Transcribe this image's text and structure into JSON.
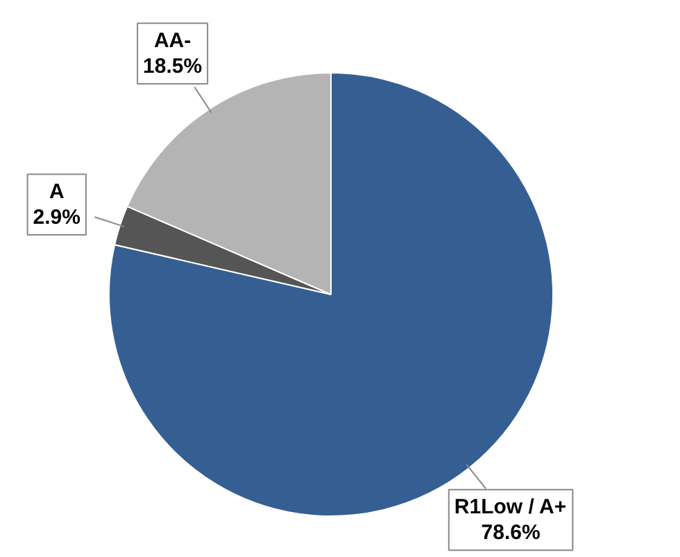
{
  "chart_data": {
    "type": "pie",
    "categories": [
      "R1Low / A+",
      "A",
      "AA-"
    ],
    "values": [
      78.6,
      2.9,
      18.5
    ],
    "colors": [
      "#355f92",
      "#555555",
      "#b4b4b4"
    ],
    "value_labels": [
      "78.6%",
      "2.9%",
      "18.5%"
    ]
  }
}
